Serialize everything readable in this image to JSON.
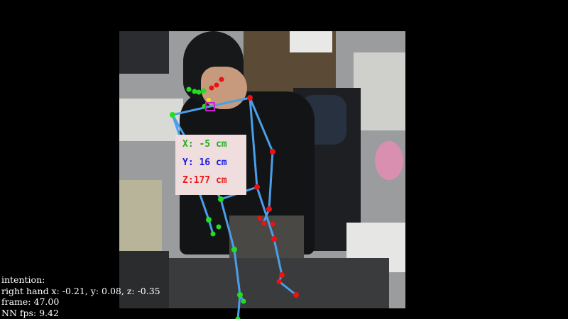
{
  "overlay": {
    "coordinates": {
      "x_text": "X: -5 cm",
      "y_text": "Y: 16 cm",
      "z_text": "Z:177 cm",
      "x_color": "#22aa22",
      "y_color": "#1a1ae6",
      "z_color": "#e61a1a"
    },
    "info": {
      "intention_label": "intention:",
      "right_hand_text": "right hand x: -0.21, y: 0.08, z: -0.35",
      "frame_text": "frame: 47.00",
      "fps_text": "NN fps: 9.42"
    }
  },
  "colors": {
    "bone": "#4a9fe8",
    "left_joint": "#22dd22",
    "right_joint": "#ee1111",
    "nose_marker": "#cc22cc",
    "head_marker": "#eedd22"
  },
  "icons": {
    "skeleton": "pose-skeleton",
    "target": "nose-target-box"
  }
}
